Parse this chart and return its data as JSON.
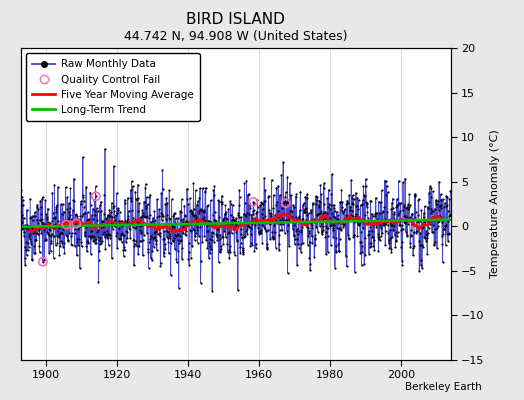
{
  "title": "BIRD ISLAND",
  "subtitle": "44.742 N, 94.908 W (United States)",
  "ylabel": "Temperature Anomaly (°C)",
  "attribution": "Berkeley Earth",
  "xlim": [
    1893,
    2014
  ],
  "ylim": [
    -15,
    20
  ],
  "yticks": [
    -15,
    -10,
    -5,
    0,
    5,
    10,
    15,
    20
  ],
  "xticks": [
    1900,
    1920,
    1940,
    1960,
    1980,
    2000
  ],
  "bg_color": "#e8e8e8",
  "plot_bg_color": "#ffffff",
  "raw_line_color": "#3333cc",
  "raw_dot_color": "#000000",
  "qc_marker_color": "#ff69b4",
  "moving_avg_color": "#ff0000",
  "trend_color": "#00bb00",
  "grid_color": "#cccccc",
  "start_year": 1893,
  "end_year": 2013,
  "seed": 42
}
